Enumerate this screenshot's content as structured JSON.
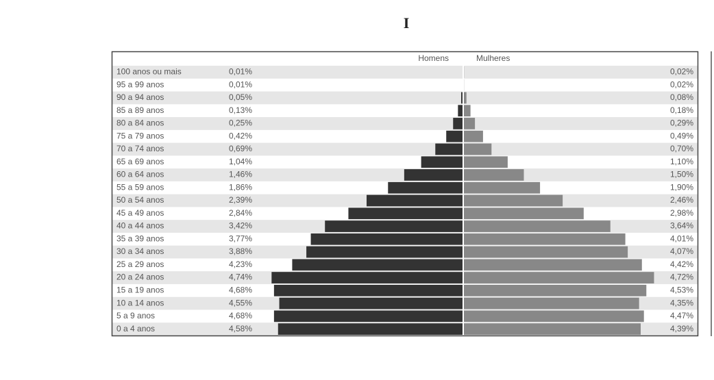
{
  "chart_data": {
    "type": "bar",
    "title": "I",
    "categories": [
      "100 anos ou mais",
      "95 a 99 anos",
      "90 a 94 anos",
      "85 a 89 anos",
      "80 a 84 anos",
      "75 a 79 anos",
      "70 a 74 anos",
      "65 a 69 anos",
      "60 a 64 anos",
      "55 a 59 anos",
      "50 a 54 anos",
      "45 a 49 anos",
      "40 a 44 anos",
      "35 a 39 anos",
      "30 a 34 anos",
      "25 a 29 anos",
      "20 a 24 anos",
      "15 a 19 anos",
      "10 a 14 anos",
      "5 a 9 anos",
      "0 a 4 anos"
    ],
    "series": [
      {
        "name": "Homens",
        "color": "#333333",
        "values": [
          0.01,
          0.01,
          0.05,
          0.13,
          0.25,
          0.42,
          0.69,
          1.04,
          1.46,
          1.86,
          2.39,
          2.84,
          3.42,
          3.77,
          3.88,
          4.23,
          4.74,
          4.68,
          4.55,
          4.68,
          4.58
        ],
        "value_labels": [
          "0,01%",
          "0,01%",
          "0,05%",
          "0,13%",
          "0,25%",
          "0,42%",
          "0,69%",
          "1,04%",
          "1,46%",
          "1,86%",
          "2,39%",
          "2,84%",
          "3,42%",
          "3,77%",
          "3,88%",
          "4,23%",
          "4,74%",
          "4,68%",
          "4,55%",
          "4,68%",
          "4,58%"
        ]
      },
      {
        "name": "Mulheres",
        "color": "#888888",
        "values": [
          0.02,
          0.02,
          0.08,
          0.18,
          0.29,
          0.49,
          0.7,
          1.1,
          1.5,
          1.9,
          2.46,
          2.98,
          3.64,
          4.01,
          4.07,
          4.42,
          4.72,
          4.53,
          4.35,
          4.47,
          4.39
        ],
        "value_labels": [
          "0,02%",
          "0,02%",
          "0,08%",
          "0,18%",
          "0,29%",
          "0,49%",
          "0,70%",
          "1,10%",
          "1,50%",
          "1,90%",
          "2,46%",
          "2,98%",
          "3,64%",
          "4,01%",
          "4,07%",
          "4,42%",
          "4,72%",
          "4,53%",
          "4,35%",
          "4,47%",
          "4,39%"
        ]
      }
    ]
  }
}
